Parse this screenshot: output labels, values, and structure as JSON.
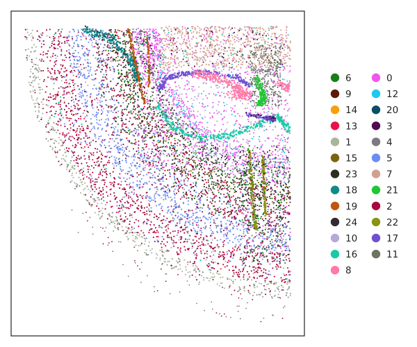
{
  "chart_data": {
    "type": "scatter",
    "title": "",
    "xlabel": "",
    "ylabel": "",
    "axes_visible": false,
    "grid": false,
    "legend_placement": "right",
    "legend_columns": 2,
    "description_hint": "spatial cell-cluster map of a brain section; 25 categorical clusters",
    "clusters": [
      {
        "label": "6",
        "color": "#1a7f1a"
      },
      {
        "label": "9",
        "color": "#5c1a0a"
      },
      {
        "label": "14",
        "color": "#f5a00a"
      },
      {
        "label": "13",
        "color": "#e8134a"
      },
      {
        "label": "1",
        "color": "#a9b59a"
      },
      {
        "label": "15",
        "color": "#7a6410"
      },
      {
        "label": "23",
        "color": "#2b2f1f"
      },
      {
        "label": "18",
        "color": "#0f8a8a"
      },
      {
        "label": "19",
        "color": "#c0560f"
      },
      {
        "label": "24",
        "color": "#352a32"
      },
      {
        "label": "10",
        "color": "#b6a8d8"
      },
      {
        "label": "16",
        "color": "#1ac9a6"
      },
      {
        "label": "8",
        "color": "#ff7aa8"
      },
      {
        "label": "0",
        "color": "#ee55ee"
      },
      {
        "label": "12",
        "color": "#1ec8f0"
      },
      {
        "label": "20",
        "color": "#0a4f66"
      },
      {
        "label": "3",
        "color": "#520a52"
      },
      {
        "label": "4",
        "color": "#7d7a82"
      },
      {
        "label": "5",
        "color": "#6b8cf2"
      },
      {
        "label": "7",
        "color": "#d2a090"
      },
      {
        "label": "21",
        "color": "#1ec832"
      },
      {
        "label": "2",
        "color": "#a8073f"
      },
      {
        "label": "22",
        "color": "#8a9410"
      },
      {
        "label": "17",
        "color": "#7050d0"
      },
      {
        "label": "11",
        "color": "#6a7563"
      }
    ]
  }
}
